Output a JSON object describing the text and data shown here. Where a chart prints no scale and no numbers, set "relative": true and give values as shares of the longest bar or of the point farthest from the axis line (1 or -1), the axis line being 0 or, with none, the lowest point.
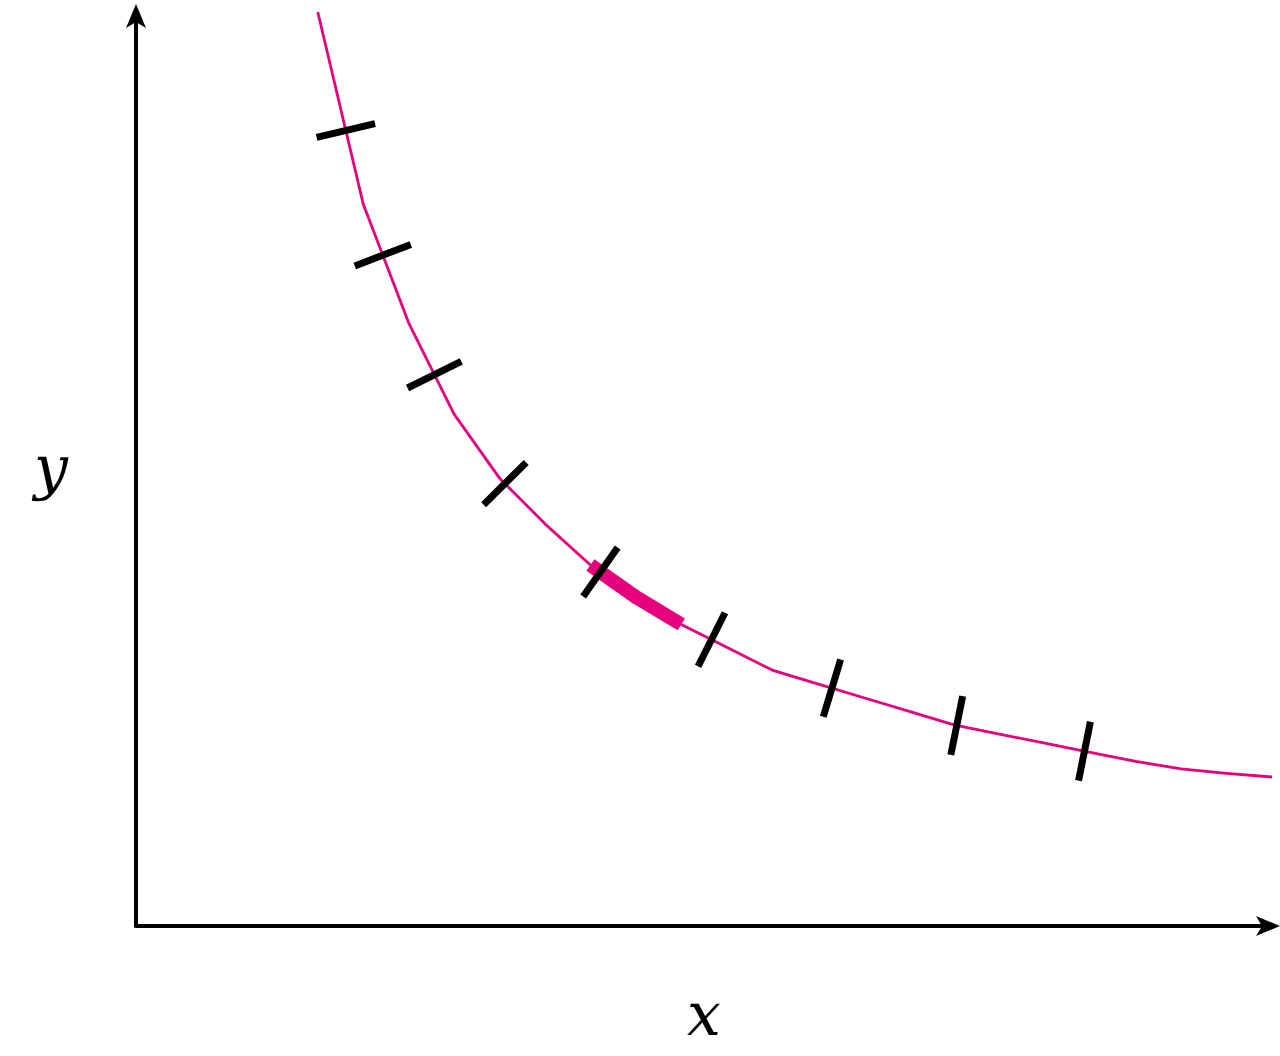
{
  "chart_data": {
    "type": "line",
    "xlabel": "x",
    "ylabel": "y",
    "relative": true,
    "grid": false,
    "marker": "none",
    "line_style": "solid",
    "categories": [
      null,
      null,
      null,
      null,
      null,
      null,
      null,
      null,
      null,
      null,
      null,
      null,
      null,
      null,
      null,
      null,
      null,
      null,
      null,
      null,
      null,
      null,
      null,
      null,
      null,
      null
    ],
    "series": [
      {
        "color": "#e6007e",
        "values": [
          null,
          null,
          null,
          null,
          1.0,
          0.79,
          0.66,
          0.56,
          0.49,
          0.44,
          0.395,
          0.36,
          0.33,
          0.305,
          0.28,
          0.265,
          0.25,
          0.235,
          0.22,
          0.21,
          0.2,
          0.19,
          0.18,
          0.172,
          0.167,
          0.163
        ]
      },
      {
        "color": "#e6007e",
        "values": [
          null,
          null,
          null,
          null,
          null,
          null,
          null,
          null,
          null,
          null,
          0.395,
          0.36,
          0.33,
          null,
          null,
          null,
          null,
          null,
          null,
          null,
          null,
          null,
          null,
          null,
          null,
          null
        ]
      }
    ]
  }
}
